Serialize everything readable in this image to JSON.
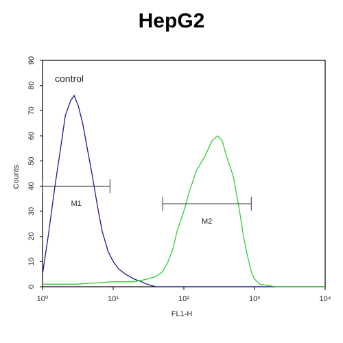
{
  "chart_data": {
    "type": "histogram-line",
    "title": "HepG2",
    "x_label": "FL1-H",
    "y_label": "Counts",
    "log_x": true,
    "xlim": [
      1,
      10000
    ],
    "ylim": [
      0,
      90
    ],
    "xticks": [
      {
        "value": 1,
        "label": "10⁰"
      },
      {
        "value": 10,
        "label": "10¹"
      },
      {
        "value": 100,
        "label": "10²"
      },
      {
        "value": 1000,
        "label": "10³"
      },
      {
        "value": 10000,
        "label": "10⁴"
      }
    ],
    "yticks": [
      0,
      10,
      20,
      30,
      40,
      50,
      60,
      70,
      80,
      90
    ],
    "series": [
      {
        "name": "control",
        "color": "#1a1a8c",
        "x": [
          1,
          1.2,
          1.5,
          1.8,
          2.1,
          2.5,
          2.8,
          3.2,
          3.7,
          4.3,
          5,
          6,
          7,
          8.5,
          10,
          12,
          15,
          20,
          25,
          30,
          40,
          60,
          100,
          1000,
          10000
        ],
        "values": [
          5,
          20,
          40,
          55,
          68,
          74,
          76,
          72,
          65,
          55,
          45,
          32,
          22,
          14,
          10,
          7,
          5,
          3,
          2,
          1,
          0,
          0,
          0,
          0,
          0
        ]
      },
      {
        "color": "#33cc33",
        "x": [
          1,
          3,
          10,
          20,
          30,
          40,
          50,
          60,
          70,
          80,
          100,
          120,
          150,
          200,
          250,
          300,
          350,
          400,
          500,
          600,
          700,
          800,
          900,
          1000,
          1200,
          2000,
          10000
        ],
        "values": [
          1,
          1,
          2,
          2,
          3,
          4,
          6,
          10,
          15,
          22,
          30,
          38,
          46,
          52,
          58,
          60,
          58,
          52,
          44,
          32,
          20,
          12,
          6,
          3,
          1,
          0,
          0
        ]
      }
    ],
    "markers": [
      {
        "label": "M1",
        "x": [
          1,
          9
        ],
        "y": 40
      },
      {
        "label": "M2",
        "x": [
          50,
          900
        ],
        "y": 33
      }
    ]
  }
}
